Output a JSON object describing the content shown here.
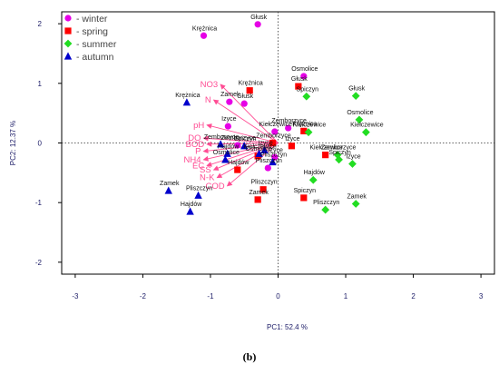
{
  "caption": "(b)",
  "chart_data": {
    "type": "scatter",
    "title": "",
    "xlabel": "PC1: 52.4 %",
    "ylabel": "PC2: 12.37 %",
    "xlim": [
      -3.2,
      3.2
    ],
    "ylim": [
      -2.2,
      2.2
    ],
    "x_ticks": [
      -3,
      -2,
      -1,
      0,
      1,
      2,
      3
    ],
    "y_ticks": [
      -2,
      -1,
      0,
      1,
      2
    ],
    "grid": false,
    "reference_lines": {
      "x": 0,
      "y": 0,
      "style": "dotted"
    },
    "legend_position": "top-left",
    "series": [
      {
        "name": "- winter",
        "color": "#e600e6",
        "marker": "circle",
        "points": [
          {
            "label": "Głusk",
            "x": -0.3,
            "y": 1.99
          },
          {
            "label": "Krężnica",
            "x": -1.1,
            "y": 1.8
          },
          {
            "label": "Osmolice",
            "x": 0.38,
            "y": 1.12
          },
          {
            "label": "Zamek",
            "x": -0.72,
            "y": 0.69
          },
          {
            "label": "Głusk",
            "x": -0.5,
            "y": 0.66
          },
          {
            "label": "Izyce",
            "x": -0.74,
            "y": 0.28
          },
          {
            "label": "Kiełczewice",
            "x": -0.05,
            "y": 0.19
          },
          {
            "label": "Zemborzyce",
            "x": 0.15,
            "y": 0.25
          },
          {
            "label": "Izyce",
            "x": -0.05,
            "y": -0.24
          },
          {
            "label": "Zemborzyce",
            "x": -0.6,
            "y": -0.04
          },
          {
            "label": "Pliszczyn",
            "x": -0.15,
            "y": -0.42
          }
        ]
      },
      {
        "name": "- spring",
        "color": "#ff0000",
        "marker": "square",
        "points": [
          {
            "label": "Krężnica",
            "x": -0.42,
            "y": 0.88
          },
          {
            "label": "Głusk",
            "x": 0.3,
            "y": 0.95
          },
          {
            "label": "Krężnica",
            "x": 0.38,
            "y": 0.2
          },
          {
            "label": "Zemborzyce",
            "x": -0.08,
            "y": 0.0
          },
          {
            "label": "Kiełczewice",
            "x": 0.7,
            "y": -0.2
          },
          {
            "label": "Osmolice",
            "x": -0.3,
            "y": -0.22
          },
          {
            "label": "Hajdów",
            "x": -0.6,
            "y": -0.45
          },
          {
            "label": "Pliszczyn",
            "x": -0.22,
            "y": -0.78
          },
          {
            "label": "Zamek",
            "x": -0.3,
            "y": -0.95
          },
          {
            "label": "Spiczyn",
            "x": 0.38,
            "y": -0.92
          },
          {
            "label": "Izyce",
            "x": 0.2,
            "y": -0.05
          }
        ]
      },
      {
        "name": "- summer",
        "color": "#22dd22",
        "marker": "diamond",
        "points": [
          {
            "label": "Spiczyn",
            "x": 0.42,
            "y": 0.78
          },
          {
            "label": "Głusk",
            "x": 1.15,
            "y": 0.79
          },
          {
            "label": "Osmolice",
            "x": 1.2,
            "y": 0.39
          },
          {
            "label": "Kiełczewice",
            "x": 1.3,
            "y": 0.18
          },
          {
            "label": "Kiełczewice",
            "x": 0.45,
            "y": 0.18
          },
          {
            "label": "Zemborzyce",
            "x": 0.88,
            "y": -0.2
          },
          {
            "label": "Izyce",
            "x": 1.1,
            "y": -0.35
          },
          {
            "label": "Hajdów",
            "x": 0.52,
            "y": -0.62
          },
          {
            "label": "Zamek",
            "x": 1.15,
            "y": -1.02
          },
          {
            "label": "Pliszczyn",
            "x": 0.7,
            "y": -1.12
          },
          {
            "label": "Spiczyn",
            "x": 0.9,
            "y": -0.28
          }
        ]
      },
      {
        "name": "- autumn",
        "color": "#0000cc",
        "marker": "triangle",
        "points": [
          {
            "label": "Krężnica",
            "x": -1.35,
            "y": 0.68
          },
          {
            "label": "Zamek",
            "x": -1.62,
            "y": -0.8
          },
          {
            "label": "Pliszczyn",
            "x": -1.18,
            "y": -0.88
          },
          {
            "label": "Hajdów",
            "x": -1.3,
            "y": -1.15
          },
          {
            "label": "Zemborzyce",
            "x": -0.85,
            "y": -0.02
          },
          {
            "label": "Spiczyn",
            "x": -0.5,
            "y": -0.05
          },
          {
            "label": "Osmolice",
            "x": -0.78,
            "y": -0.28
          },
          {
            "label": "Hajdów",
            "x": -0.75,
            "y": -0.18
          },
          {
            "label": "Pliszczyn",
            "x": -0.08,
            "y": -0.32
          },
          {
            "label": "Kiełczewice",
            "x": -0.28,
            "y": -0.18
          },
          {
            "label": "Izyce",
            "x": -0.2,
            "y": -0.12
          }
        ]
      }
    ],
    "loadings": {
      "color": "#ff4d94",
      "origin": [
        0,
        0
      ],
      "vectors": [
        {
          "label": "NO3",
          "x": -0.85,
          "y": 0.98
        },
        {
          "label": "N",
          "x": -0.95,
          "y": 0.72
        },
        {
          "label": "pH",
          "x": -1.05,
          "y": 0.3
        },
        {
          "label": "DO",
          "x": -1.1,
          "y": 0.08
        },
        {
          "label": "BOD",
          "x": -1.05,
          "y": -0.02
        },
        {
          "label": "P",
          "x": -1.1,
          "y": -0.14
        },
        {
          "label": "NH4",
          "x": -1.1,
          "y": -0.28
        },
        {
          "label": "EC",
          "x": -1.05,
          "y": -0.38
        },
        {
          "label": "SS",
          "x": -0.95,
          "y": -0.45
        },
        {
          "label": "N-K",
          "x": -0.9,
          "y": -0.58
        },
        {
          "label": "COD",
          "x": -0.75,
          "y": -0.72
        }
      ]
    }
  }
}
